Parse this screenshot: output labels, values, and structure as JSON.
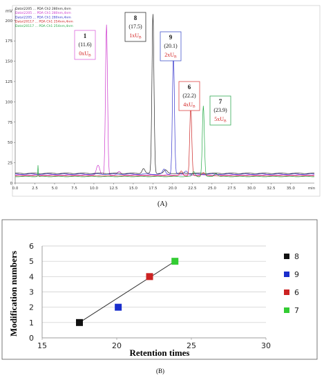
{
  "panel_a": {
    "panel_label": "(A)",
    "y_unit": "mV",
    "x_unit": "min",
    "file_legend": [
      {
        "text": "Data\\2205 ... PDA Ch2 280nm,4nm",
        "color": "#222222"
      },
      {
        "text": "Data\\2205 ... PDA Ch1 280nm,4nm",
        "color": "#cc33cc"
      },
      {
        "text": "Data\\2205 ... PDA Ch1 280nm,4nm",
        "color": "#3333cc"
      },
      {
        "text": "Data\\20117 ... PDA Ch1 254nm,4nm",
        "color": "#cc2222"
      },
      {
        "text": "Data\\20117 ... PDA Ch1 254nm,4nm",
        "color": "#22aa44"
      }
    ],
    "chart_data": {
      "type": "line",
      "xlim": [
        0,
        38
      ],
      "ylim": [
        0,
        210
      ],
      "x_ticks": [
        "0.0",
        "2.5",
        "5.0",
        "7.5",
        "10.0",
        "12.5",
        "15.0",
        "17.5",
        "20.0",
        "22.5",
        "25.0",
        "27.5",
        "30.0",
        "32.5",
        "35.0",
        "min"
      ],
      "y_ticks": [
        "0",
        "25",
        "50",
        "75",
        "100",
        "125",
        "150",
        "175",
        "200"
      ],
      "series": [
        {
          "color": "#cc33cc",
          "peak_x": 11.6,
          "peak_y": 195,
          "base": 10
        },
        {
          "color": "#222222",
          "peak_x": 17.5,
          "peak_y": 208,
          "base": 12
        },
        {
          "color": "#3333cc",
          "peak_x": 20.1,
          "peak_y": 158,
          "base": 11
        },
        {
          "color": "#cc2222",
          "peak_x": 22.3,
          "peak_y": 95,
          "base": 9
        },
        {
          "color": "#22aa44",
          "peak_x": 23.9,
          "peak_y": 95,
          "base": 8
        }
      ],
      "annotations": [
        {
          "compound": "1",
          "time": "(11.6)",
          "mod": "0xU",
          "mod_sub": "B",
          "box_color": "#dd66dd"
        },
        {
          "compound": "8",
          "time": "(17.5)",
          "mod": "1xU",
          "mod_sub": "B",
          "box_color": "#333333"
        },
        {
          "compound": "9",
          "time": "(20.1)",
          "mod": "2xU",
          "mod_sub": "B",
          "box_color": "#4455cc"
        },
        {
          "compound": "6",
          "time": "(22.2)",
          "mod": "4xU",
          "mod_sub": "B",
          "box_color": "#dd4444"
        },
        {
          "compound": "7",
          "time": "(23.9)",
          "mod": "5xU",
          "mod_sub": "B",
          "box_color": "#33aa55"
        }
      ]
    }
  },
  "panel_b": {
    "panel_label": "(B)",
    "chart_data": {
      "type": "scatter",
      "xlabel": "Retention times",
      "ylabel": "Modification numbers",
      "xlim": [
        15,
        30
      ],
      "ylim": [
        0,
        6
      ],
      "x_ticks": [
        "15",
        "20",
        "25",
        "30"
      ],
      "y_ticks": [
        "0",
        "1",
        "2",
        "3",
        "4",
        "5",
        "6"
      ],
      "grid": true,
      "legend_position": "right",
      "fit_line": {
        "x": [
          17.5,
          23.9
        ],
        "y": [
          1,
          5
        ]
      },
      "series": [
        {
          "name": "8",
          "x": 17.5,
          "y": 1,
          "color": "#111111"
        },
        {
          "name": "9",
          "x": 20.1,
          "y": 2,
          "color": "#1a2ecc"
        },
        {
          "name": "6",
          "x": 22.2,
          "y": 4,
          "color": "#cc2222"
        },
        {
          "name": "7",
          "x": 23.9,
          "y": 5,
          "color": "#33cc33"
        }
      ]
    }
  }
}
